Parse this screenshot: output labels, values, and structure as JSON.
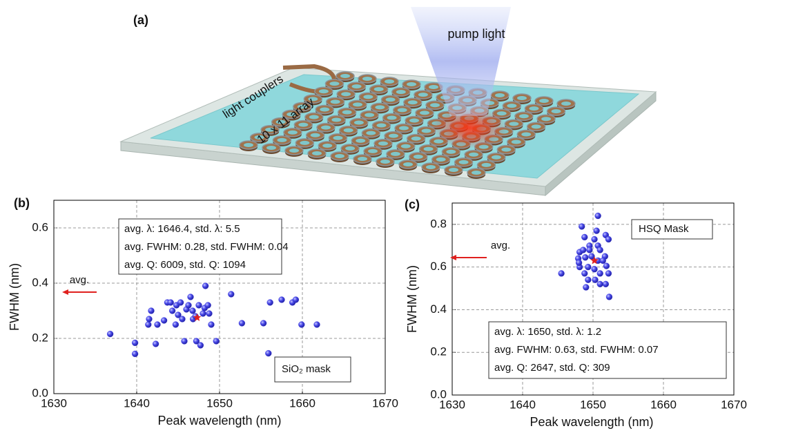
{
  "illustration": {
    "label": "(a)",
    "pump": "pump light",
    "couplers": "light couplers",
    "array": "10 x 11 array"
  },
  "chart_data": [
    {
      "type": "scatter",
      "panel_label": "(b)",
      "xlabel": "Peak wavelength (nm)",
      "ylabel": "FWHM (nm)",
      "xlim": [
        1630,
        1670
      ],
      "xticks": [
        1630,
        1640,
        1650,
        1660,
        1670
      ],
      "ylim": [
        0,
        0.7
      ],
      "yticks": [
        {
          "value": 0,
          "label": "0.0"
        },
        0.2,
        0.4,
        0.6
      ],
      "grid": true,
      "series": [
        {
          "color": "#3a3ae0",
          "marker": "sphere",
          "x": [
            1636.8,
            1639.8,
            1639.8,
            1641.75,
            1641.4,
            1641.5,
            1642.3,
            1642.5,
            1643.3,
            1643.7,
            1644.1,
            1644.3,
            1644.7,
            1644.8,
            1645,
            1645.3,
            1645.5,
            1645.75,
            1646,
            1646.25,
            1646.5,
            1646.75,
            1646.8,
            1647.1,
            1647.2,
            1647.5,
            1647.7,
            1648,
            1648.2,
            1648.3,
            1648.6,
            1648.75,
            1649,
            1649.6,
            1651.4,
            1652.7,
            1655.3,
            1656.1,
            1655.9,
            1657.5,
            1658.8,
            1659.2,
            1659.9,
            1661.75
          ],
          "values": [
            0.216,
            0.184,
            0.144,
            0.3,
            0.25,
            0.27,
            0.18,
            0.25,
            0.265,
            0.33,
            0.33,
            0.3,
            0.25,
            0.32,
            0.285,
            0.33,
            0.27,
            0.19,
            0.305,
            0.32,
            0.35,
            0.3,
            0.27,
            0.28,
            0.19,
            0.32,
            0.175,
            0.29,
            0.31,
            0.39,
            0.32,
            0.29,
            0.25,
            0.19,
            0.36,
            0.255,
            0.255,
            0.33,
            0.146,
            0.34,
            0.33,
            0.34,
            0.25,
            0.25
          ]
        },
        {
          "color": "#e0201e",
          "marker": "star",
          "x": [
            1647.3
          ],
          "values": [
            0.275
          ]
        }
      ],
      "stats": [
        "avg. λ: 1646.4,   std. λ: 5.5",
        "avg. FWHM: 0.28,  std. FWHM: 0.04",
        "avg. Q: 6009,  std. Q: 1094"
      ],
      "mask_label": "SiO₂ mask",
      "arrow_label": "avg."
    },
    {
      "type": "scatter",
      "panel_label": "(c)",
      "xlabel": "Peak wavelength (nm)",
      "ylabel": "FWHM (nm)",
      "xlim": [
        1630,
        1670
      ],
      "xticks": [
        1630,
        1640,
        1650,
        1660,
        1670
      ],
      "ylim": [
        0,
        0.9
      ],
      "yticks": [
        {
          "value": 0,
          "label": "0.0"
        },
        0.2,
        0.4,
        0.6,
        0.8
      ],
      "grid": true,
      "series": [
        {
          "color": "#3a3ae0",
          "marker": "sphere",
          "x": [
            1645.5,
            1648.4,
            1650.7,
            1650.5,
            1648.8,
            1651.8,
            1652.2,
            1650.2,
            1649.5,
            1650.7,
            1648.1,
            1648.6,
            1649.5,
            1651,
            1651.7,
            1647.9,
            1648.9,
            1650.7,
            1651.4,
            1648.1,
            1649.3,
            1650.2,
            1651.9,
            1648.8,
            1651,
            1652.2,
            1649.3,
            1650.3,
            1651.8,
            1649,
            1651,
            1652.3,
            1648,
            1649.8
          ],
          "values": [
            0.57,
            0.79,
            0.84,
            0.77,
            0.74,
            0.75,
            0.73,
            0.73,
            0.7,
            0.7,
            0.67,
            0.68,
            0.68,
            0.68,
            0.65,
            0.64,
            0.645,
            0.63,
            0.63,
            0.6,
            0.6,
            0.59,
            0.605,
            0.57,
            0.57,
            0.57,
            0.54,
            0.54,
            0.52,
            0.505,
            0.52,
            0.46,
            0.62,
            0.65
          ]
        },
        {
          "color": "#e0201e",
          "marker": "star",
          "x": [
            1650.2
          ],
          "values": [
            0.63
          ]
        }
      ],
      "stats": [
        "avg. λ: 1650,  std. λ: 1.2",
        "avg. FWHM: 0.63,  std. FWHM: 0.07",
        "avg. Q: 2647,  std. Q: 309"
      ],
      "mask_label": "HSQ Mask",
      "arrow_label": "avg."
    }
  ]
}
